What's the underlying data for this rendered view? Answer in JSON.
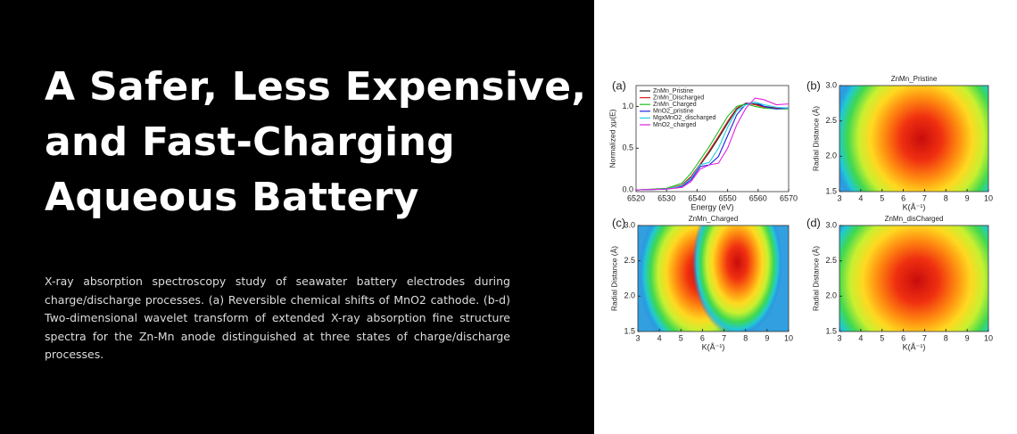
{
  "header": {
    "title_lines": [
      "A Safer, Less Expensive,",
      "and Fast-Charging",
      "Aqueous Battery"
    ]
  },
  "description": "X-ray absorption spectroscopy study of seawater battery electrodes during charge/discharge processes. (a) Reversible chemical shifts of MnO2 cathode. (b-d) Two-dimensional wavelet transform of extended X-ray absorption fine structure spectra for the Zn-Mn anode distinguished at three states of charge/discharge processes.",
  "figure": {
    "panels": [
      {
        "label": "(a)",
        "type": "line",
        "xlabel": "Energy (eV)",
        "ylabel": "Normalized χμ(E)",
        "x": [
          6520,
          6530,
          6535,
          6538,
          6541,
          6544,
          6547,
          6550,
          6553,
          6556,
          6559,
          6562,
          6566,
          6570
        ],
        "series": [
          {
            "name": "ZnMn_Pristine",
            "color": "#222222",
            "values": [
              0,
              0.01,
              0.05,
              0.15,
              0.3,
              0.45,
              0.62,
              0.8,
              0.97,
              1.04,
              1.03,
              1.0,
              0.98,
              0.98
            ]
          },
          {
            "name": "ZnMn_Discharged",
            "color": "#e02020",
            "values": [
              0,
              0.01,
              0.06,
              0.16,
              0.31,
              0.47,
              0.64,
              0.82,
              0.98,
              1.04,
              1.02,
              0.99,
              0.98,
              0.98
            ]
          },
          {
            "name": "ZnMn_Charged",
            "color": "#20c020",
            "values": [
              0,
              0.02,
              0.08,
              0.2,
              0.36,
              0.52,
              0.7,
              0.88,
              1.0,
              1.03,
              1.0,
              0.98,
              0.97,
              0.97
            ]
          },
          {
            "name": "MnO2_pristine",
            "color": "#2020e0",
            "values": [
              0,
              0.01,
              0.04,
              0.12,
              0.28,
              0.3,
              0.4,
              0.65,
              0.9,
              1.03,
              1.05,
              1.0,
              0.97,
              0.98
            ]
          },
          {
            "name": "MgxMnO2_discharged",
            "color": "#20d0e0",
            "values": [
              0,
              0.01,
              0.05,
              0.14,
              0.3,
              0.33,
              0.5,
              0.75,
              0.95,
              1.02,
              1.05,
              1.02,
              0.99,
              0.98
            ]
          },
          {
            "name": "MnO2_charged",
            "color": "#e020e0",
            "values": [
              0,
              0.01,
              0.03,
              0.1,
              0.25,
              0.3,
              0.32,
              0.5,
              0.78,
              0.98,
              1.1,
              1.08,
              1.02,
              1.03
            ]
          }
        ],
        "xlim": [
          6520,
          6570
        ],
        "ylim": [
          -0.02,
          1.25
        ],
        "xticks": [
          6520,
          6530,
          6540,
          6550,
          6560,
          6570
        ],
        "yticks": [
          {
            "value": 0,
            "label": "0.0"
          },
          0.5,
          {
            "value": 1,
            "label": "1.0"
          }
        ]
      },
      {
        "label": "(b)",
        "type": "contour",
        "title": "ZnMn_Pristine",
        "xlabel": "K(Å⁻¹)",
        "ylabel": "Radial Distance (Å)",
        "xlim": [
          3,
          10
        ],
        "ylim": [
          1.5,
          3
        ],
        "xticks": [
          3,
          4,
          5,
          6,
          7,
          8,
          9,
          10
        ],
        "yticks": [
          1.5,
          {
            "value": 2,
            "label": "2.0"
          },
          2.5,
          {
            "value": 3,
            "label": "3.0"
          }
        ]
      },
      {
        "label": "(c)",
        "type": "contour",
        "title": "ZnMn_Charged",
        "xlabel": "K(Å⁻¹)",
        "ylabel": "Radial Distance (Å)",
        "xlim": [
          3,
          10
        ],
        "ylim": [
          1.5,
          3
        ],
        "xticks": [
          3,
          4,
          5,
          6,
          7,
          8,
          9,
          10
        ],
        "yticks": [
          1.5,
          {
            "value": 2,
            "label": "2.0"
          },
          2.5,
          {
            "value": 3,
            "label": "3.0"
          }
        ]
      },
      {
        "label": "(d)",
        "type": "contour",
        "title": "ZnMn_disCharged",
        "xlabel": "K(Å⁻¹)",
        "ylabel": "Radial Distance (Å)",
        "xlim": [
          3,
          10
        ],
        "ylim": [
          1.5,
          3
        ],
        "xticks": [
          3,
          4,
          5,
          6,
          7,
          8,
          9,
          10
        ],
        "yticks": [
          1.5,
          {
            "value": 2,
            "label": "2.0"
          },
          2.5,
          {
            "value": 3,
            "label": "3.0"
          }
        ]
      }
    ]
  }
}
